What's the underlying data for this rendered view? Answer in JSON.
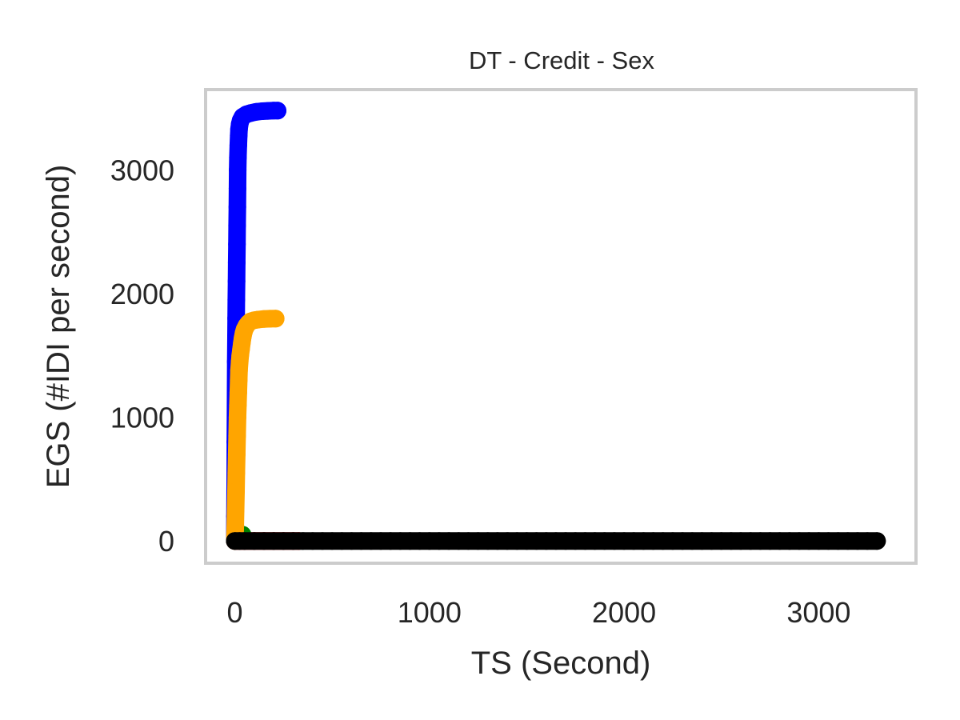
{
  "chart_data": {
    "type": "scatter",
    "title": "DT - Credit - Sex",
    "xlabel": "TS (Second)",
    "ylabel": "EGS (#IDI  per second)",
    "xlim": [
      -150,
      3500
    ],
    "ylim": [
      -180,
      3650
    ],
    "xticks": [
      0,
      1000,
      2000,
      3000
    ],
    "yticks": [
      0,
      1000,
      2000,
      3000
    ],
    "grid": false,
    "frame_color": "#cccccc",
    "series": [
      {
        "color": "#ff0000",
        "x": [
          0,
          50,
          100,
          150,
          200,
          250,
          300,
          330
        ],
        "y": [
          0,
          0,
          0,
          0,
          0,
          0,
          0,
          0
        ]
      },
      {
        "color": "#008000",
        "x": [
          0,
          5,
          10,
          20,
          40
        ],
        "y": [
          5,
          20,
          30,
          40,
          50
        ]
      },
      {
        "color": "#0000ff",
        "x": [
          0,
          1,
          2,
          3,
          4,
          5,
          6,
          7,
          8,
          9,
          10,
          11,
          12,
          13,
          14,
          15,
          16,
          18,
          20,
          22,
          25,
          30,
          40,
          60,
          80,
          110,
          140,
          170,
          200,
          220
        ],
        "y": [
          0,
          200,
          450,
          800,
          1200,
          1450,
          1650,
          1800,
          1950,
          2100,
          2250,
          2400,
          2550,
          2700,
          2850,
          3000,
          3100,
          3200,
          3280,
          3330,
          3370,
          3400,
          3430,
          3450,
          3460,
          3470,
          3475,
          3478,
          3480,
          3480
        ]
      },
      {
        "color": "#ffa500",
        "x": [
          0,
          2,
          4,
          6,
          8,
          10,
          12,
          14,
          16,
          18,
          20,
          22,
          25,
          28,
          32,
          36,
          40,
          45,
          50,
          60,
          70,
          80,
          100,
          120,
          150,
          180,
          210
        ],
        "y": [
          0,
          100,
          250,
          400,
          550,
          700,
          850,
          1000,
          1100,
          1200,
          1300,
          1380,
          1450,
          1500,
          1550,
          1600,
          1640,
          1680,
          1710,
          1740,
          1760,
          1775,
          1785,
          1790,
          1795,
          1797,
          1798
        ]
      },
      {
        "color": "#000000",
        "x": [
          0,
          25,
          50,
          100,
          150,
          200,
          250,
          300,
          350,
          400,
          450,
          500,
          550,
          600,
          650,
          700,
          750,
          800,
          850,
          900,
          950,
          1000,
          1050,
          1100,
          1150,
          1200,
          1250,
          1300,
          1350,
          1400,
          1450,
          1500,
          1550,
          1600,
          1650,
          1700,
          1750,
          1800,
          1850,
          1900,
          1950,
          2000,
          2050,
          2100,
          2150,
          2200,
          2250,
          2300,
          2350,
          2400,
          2450,
          2500,
          2550,
          2600,
          2650,
          2700,
          2750,
          2800,
          2850,
          2900,
          2950,
          3000,
          3050,
          3100,
          3150,
          3200,
          3250,
          3300
        ],
        "y": [
          0,
          0,
          0,
          0,
          0,
          0,
          0,
          0,
          0,
          0,
          0,
          0,
          0,
          0,
          0,
          0,
          0,
          0,
          0,
          0,
          0,
          0,
          0,
          0,
          0,
          0,
          0,
          0,
          0,
          0,
          0,
          0,
          0,
          0,
          0,
          0,
          0,
          0,
          0,
          0,
          0,
          0,
          0,
          0,
          0,
          0,
          0,
          0,
          0,
          0,
          0,
          0,
          0,
          0,
          0,
          0,
          0,
          0,
          0,
          0,
          0,
          0,
          0,
          0,
          0,
          0,
          0,
          0
        ]
      }
    ]
  }
}
